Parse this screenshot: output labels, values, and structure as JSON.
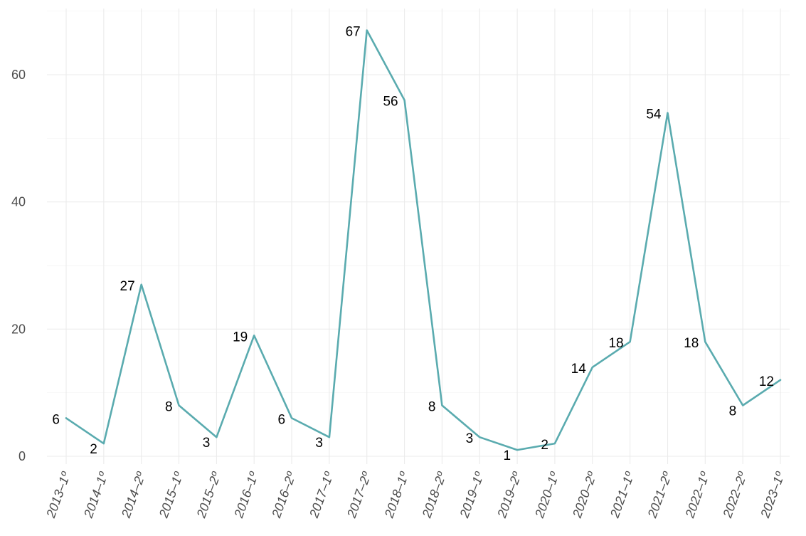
{
  "chart_data": {
    "type": "line",
    "title": "",
    "xlabel": "",
    "ylabel": "",
    "categories": [
      "2013–1º",
      "2014–1º",
      "2014–2º",
      "2015–1º",
      "2015–2º",
      "2016–1º",
      "2016–2º",
      "2017–1º",
      "2017–2º",
      "2018–1º",
      "2018–2º",
      "2019–1º",
      "2019–2º",
      "2020–1º",
      "2020–2º",
      "2021–1º",
      "2021–2º",
      "2022–1º",
      "2022–2º",
      "2023–1º"
    ],
    "series": [
      {
        "values": [
          6,
          2,
          27,
          8,
          3,
          19,
          6,
          3,
          67,
          56,
          8,
          3,
          1,
          2,
          14,
          18,
          54,
          18,
          8,
          12
        ],
        "labels": [
          "6",
          "2",
          "27",
          "8",
          "3",
          "19",
          "6",
          "3",
          "67",
          "56",
          "8",
          "3",
          "1",
          "2",
          "14",
          "18",
          "54",
          "18",
          "8",
          "12"
        ]
      }
    ],
    "ylim": [
      0,
      70
    ],
    "yticks": [
      {
        "value": 0,
        "label": "0"
      },
      {
        "value": 20,
        "label": "20"
      },
      {
        "value": 40,
        "label": "40"
      },
      {
        "value": 60,
        "label": "60"
      }
    ],
    "y_minor_ticks": [
      10,
      30,
      50,
      70
    ],
    "grid": true,
    "legend": "none",
    "colors": {
      "line": "#5aabaf",
      "grid": "#ebebeb",
      "tick_text": "#4d4d4d",
      "label_text": "#000000"
    }
  }
}
